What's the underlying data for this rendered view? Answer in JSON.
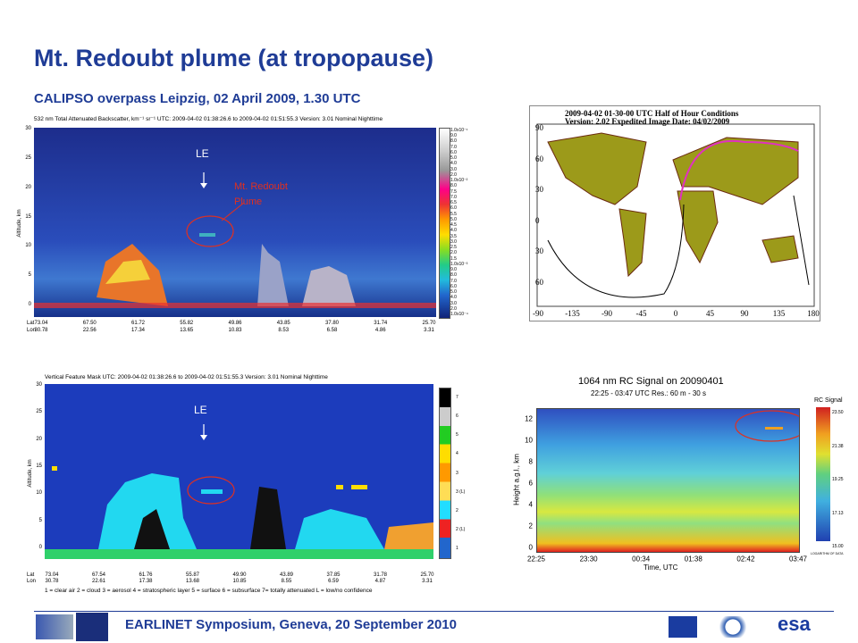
{
  "header": {
    "title": "Mt. Redoubt plume (at tropopause)",
    "subtitle": "CALIPSO overpass Leipzig, 02 April 2009, 1.30 UTC"
  },
  "backscatter": {
    "title": "532 nm Total Attenuated Backscatter, km⁻¹ sr⁻¹  UTC: 2009-04-02 01:38:26.6 to 2009-04-02 01:51:55.3   Version: 3.01  Nominal Nighttime",
    "y_label": "Altitude, km",
    "yticks": [
      "30",
      "25",
      "20",
      "15",
      "10",
      "5",
      "0"
    ],
    "lat_label": "Lat",
    "lon_label": "Lon",
    "lat": [
      "73.04",
      "67.50",
      "61.72",
      "55.82",
      "49.86",
      "43.85",
      "37.80",
      "31.74",
      "25.70"
    ],
    "lon": [
      "30.78",
      "22.56",
      "17.34",
      "13.65",
      "10.83",
      "8.53",
      "6.58",
      "4.86",
      "3.31"
    ],
    "marker": "LE",
    "annotation": "Mt. Redoubt Plume",
    "colorbar": [
      "1.0x10⁻¹",
      "9.0",
      "8.0",
      "7.0",
      "6.0",
      "5.0",
      "4.0",
      "3.0",
      "2.0",
      "1.0x10⁻²",
      "8.0",
      "7.5",
      "7.0",
      "6.5",
      "6.0",
      "5.5",
      "5.0",
      "4.5",
      "4.0",
      "3.5",
      "3.0",
      "2.5",
      "2.0",
      "1.5",
      "1.0x10⁻³",
      "9.0",
      "8.0",
      "7.0",
      "6.0",
      "5.0",
      "4.0",
      "3.0",
      "2.0",
      "1.0x10⁻⁴"
    ]
  },
  "vfm": {
    "title": "Vertical Feature Mask   UTC: 2009-04-02 01:38:26.6 to 2009-04-02 01:51:55.3   Version: 3.01  Nominal Nighttime",
    "y_label": "Altitude, km",
    "yticks": [
      "30",
      "25",
      "20",
      "15",
      "10",
      "5",
      "0"
    ],
    "lat_label": "Lat",
    "lon_label": "Lon",
    "lat": [
      "73.04",
      "67.54",
      "61.76",
      "55.87",
      "49.90",
      "43.89",
      "37.85",
      "31.78",
      "25.70"
    ],
    "lon": [
      "30.78",
      "22.61",
      "17.38",
      "13.68",
      "10.85",
      "8.55",
      "6.59",
      "4.87",
      "3.31"
    ],
    "marker": "LE",
    "legend": "1 = clear air   2 = cloud   3 = aerosol   4 = stratospheric layer   5 = surface   6 = subsurface   7= totally attenuated   L = low/no confidence",
    "colorbar": [
      "7",
      "6",
      "5",
      "4",
      "3",
      "3 (L)",
      "2",
      "2 (L)",
      "1"
    ]
  },
  "map": {
    "title": "2009-04-02  01-30-00 UTC Half of Hour Conditions",
    "subtitle": "Version: 2.02  Expedited     Image Date: 04/02/2009",
    "lat_ticks": [
      "90",
      "60",
      "30",
      "0",
      "30",
      "60"
    ],
    "lon_ticks": [
      "-90",
      "-135",
      "-90",
      "-45",
      "0",
      "45",
      "90",
      "135",
      "180"
    ]
  },
  "lidar": {
    "title": "1064 nm RC Signal on  20090401",
    "subtitle": "22:25 - 03:47 UTC Res.: 60 m - 30 s",
    "y_label": "Height a.g.l., km",
    "yticks": [
      "12",
      "10",
      "8",
      "6",
      "4",
      "2",
      "0"
    ],
    "xticks": [
      "22:25",
      "23:30",
      "00:34",
      "01:38",
      "02:42",
      "03:47"
    ],
    "x_label": "Time, UTC",
    "colorbar_title": "RC Signal",
    "colorbar": [
      "23.50",
      "21.38",
      "19.25",
      "17.13",
      "15.00"
    ],
    "colorbar_note": "LOGARITHM OF DATA"
  },
  "footer": {
    "text": "EARLINET Symposium, Geneva, 20 September 2010",
    "logo": "esa"
  }
}
